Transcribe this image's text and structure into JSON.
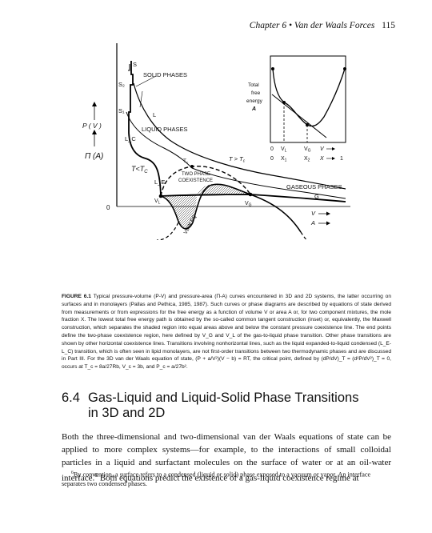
{
  "running_head": {
    "chapter": "Chapter 6",
    "title": "Van der Waals Forces",
    "page_number": "115"
  },
  "figure": {
    "y_axis_labels": {
      "p": "P ( V )",
      "pi": "Π (A)",
      "zero": "0"
    },
    "x_axis_labels": {
      "v": "V",
      "a": "A"
    },
    "curve_labels": {
      "s": "S",
      "s2": "S₂",
      "s1": "S₁",
      "l": "L",
      "lc": "L_C",
      "le": "L_E",
      "g": "G",
      "solid_phases": "SOLID PHASES",
      "liquid_phases": "LIQUID PHASES",
      "gaseous_phases": "GASEOUS PHASES",
      "two_phase_1": "TWO PHASE",
      "two_phase_2": "COEXISTENCE",
      "t_less": "T<T",
      "t_less_sub": "C",
      "t_greater": "T > T",
      "t_greater_sub": "c",
      "tc": "T",
      "tc_sub": "c",
      "vdw_eq": "VDW EQ",
      "vl": "V",
      "vl_sub": "L",
      "vg": "V",
      "vg_sub": "G"
    },
    "inset": {
      "ylabel_1": "Total",
      "ylabel_2": "free",
      "ylabel_3": "energy",
      "ylabel_4": "A",
      "x_row1": [
        "0",
        "V",
        "V",
        "V"
      ],
      "x_row1_subs": [
        "",
        "L",
        "G",
        ""
      ],
      "x_row2": [
        "0",
        "X",
        "X",
        "X",
        "1"
      ],
      "x_row2_subs": [
        "",
        "1",
        "2",
        "",
        ""
      ]
    }
  },
  "caption": {
    "label": "FIGURE 6.1",
    "text": "Typical pressure-volume (P-V) and pressure-area (Π-A) curves encountered in 3D and 2D systems, the latter occurring on surfaces and in monolayers (Pallas and Pethica, 1985, 1987). Such curves or phase diagrams are described by equations of state derived from measurements or from expressions for the free energy as a function of volume V or area A or, for two component mixtures, the mole fraction X. The lowest total free energy path is obtained by the so-called common tangent construction (inset) or, equivalently, the Maxwell construction, which separates the shaded region into equal areas above and below the constant pressure coexistence line. The end points define the two-phase coexistence region, here defined by V_G and V_L of the gas-to-liquid phase transition. Other phase transitions are shown by other horizontal coexistence lines. Transitions involving nonhorizontal lines, such as the liquid expanded-to-liquid condensed (L_E-L_C) transition, which is often seen in lipid monolayers, are not first-order transitions between two thermodynamic phases and are discussed in Part III. For the 3D van der Waals equation of state, (P + a/V²)(V − b) = RT, the critical point, defined by (dP/dV)_T = (d²P/dV²)_T = 0, occurs at T_c = 8a/27Rb, V_c = 3b, and P_c = a/27b²."
  },
  "section": {
    "number": "6.4",
    "title_line1": "Gas-Liquid and Liquid-Solid Phase Transitions",
    "title_line2": "in 3D and 2D"
  },
  "body": {
    "paragraph": "Both the three-dimensional and two-dimensional van der Waals equations of state can be applied to more complex systems—for example, to the interactions of small colloidal particles in a liquid and surfactant molecules on the surface of water or at an oil-water interface.",
    "footnote_marker": "6",
    "paragraph_end": " Both equations predict the existence of a gas-liquid coexistence regime at"
  },
  "footnote": {
    "marker": "6",
    "text": "By convention, a surface refers to a condensed (liquid or solid) phase exposed to a vacuum or vapor. An interface separates two condensed phases."
  }
}
